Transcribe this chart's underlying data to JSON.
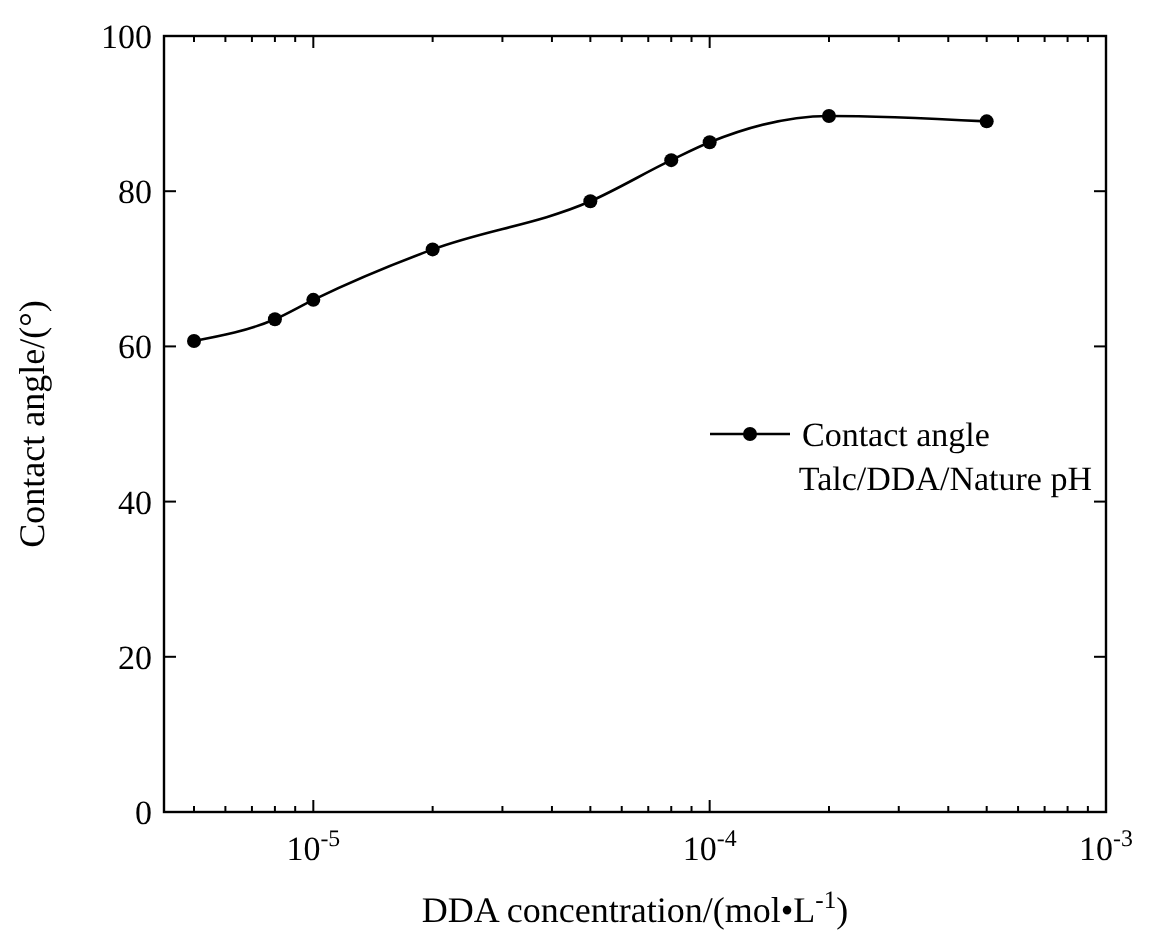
{
  "chart_data": {
    "type": "line",
    "xlabel": "DDA concentration/(mol•L$^{-1}$)",
    "ylabel": "Contact angle/(°)",
    "log": "x",
    "xlim": [
      4.2e-06,
      0.001
    ],
    "xticks": [
      {
        "value": 1e-05,
        "label": "10$^{-5}$"
      },
      {
        "value": 0.0001,
        "label": "10$^{-4}$"
      },
      {
        "value": 0.001,
        "label": "10$^{-3}$"
      }
    ],
    "ylim": [
      0,
      100
    ],
    "yticks": [
      0,
      20,
      40,
      60,
      80,
      100
    ],
    "x": [
      5e-06,
      8e-06,
      1e-05,
      2e-05,
      5e-05,
      8e-05,
      0.0001,
      0.0002,
      0.0005
    ],
    "series": [
      {
        "name": "Contact angle",
        "color": "#000000",
        "values": [
          60.7,
          63.5,
          66,
          72.5,
          78.7,
          84,
          86.3,
          89.7,
          89
        ]
      }
    ],
    "marker": "circle",
    "legend": "right",
    "grid": false,
    "annotations": [
      "Talc/DDA/Nature pH"
    ]
  }
}
